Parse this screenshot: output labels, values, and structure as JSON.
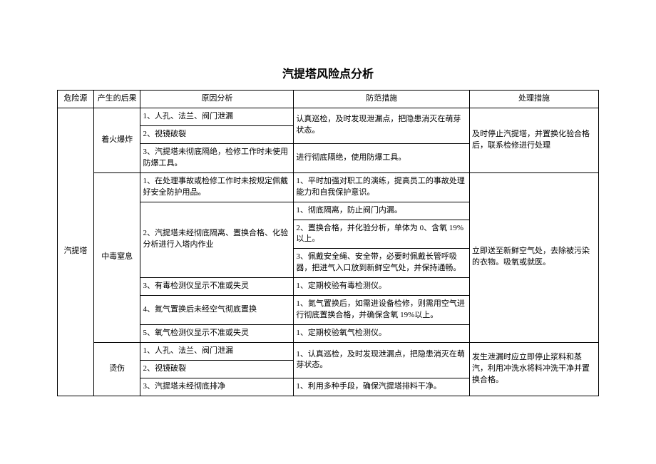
{
  "title": "汽提塔风险点分析",
  "headers": {
    "source": "危险源",
    "consequence": "产生的后果",
    "cause": "原因分析",
    "prevention": "防范措施",
    "treatment": "处理措施"
  },
  "source": "汽提塔",
  "groups": [
    {
      "consequence": "着火爆炸",
      "rows": [
        {
          "cause": "1、人孔、法兰、阀门泄漏",
          "prevention": "认真巡检，及时发现泄漏点，把隐患消灭在萌芽状态。"
        },
        {
          "cause": "2、视镜破裂"
        },
        {
          "cause": "3、汽提塔未彻底隔绝，检修工作时未使用防爆工具。",
          "prevention": "进行彻底隔绝，使用防爆工具。"
        }
      ],
      "treatment": "及时停止汽提塔，并置换化验合格后，联系检修进行处理"
    },
    {
      "consequence": "中毒窒息",
      "rows": [
        {
          "cause": "1、在处理事故或检修工作时未按规定佩戴好安全防护用品。",
          "prevention": "1、平时加强对职工的演练，提高员工的事故处理能力和自我保护意识。"
        },
        {
          "cause": "2、汽提塔未经彻底隔离、置换合格、化验分析进行入塔内作业",
          "preventions": [
            "1、彻底隔离，防止阀门内漏。",
            "2、置换合格，并化验分析，单体为 0、含氧 19%以上。",
            "3、佩戴安全绳、安全带，必要时佩戴长管呼吸器，把进气入口放到新鲜空气处，并保持通畅。"
          ]
        },
        {
          "cause": "3、有毒检测仪显示不准或失灵",
          "prevention": "1、定期校验有毒检测仪。"
        },
        {
          "cause": "4、氮气置换后未经空气彻底置换",
          "prevention": "1、氮气置换后，如需进设备检修，则需用空气进行彻底置换合格，并确保含氧 19%以上。"
        },
        {
          "cause": "5、氧气检测仪显示不准或失灵",
          "prevention": "1、定期校验氧气检测仪。"
        }
      ],
      "treatment": "立即送至新鲜空气处，去除被污染的衣物。吸氧或就医。"
    },
    {
      "consequence": "烫伤",
      "rows": [
        {
          "cause": "1、人孔、法兰、阀门泄漏",
          "prevention": "1、认真巡检，及时发现泄漏点，把隐患消灭在萌芽状态。"
        },
        {
          "cause": "2、视镜破裂"
        },
        {
          "cause": "3、汽提塔未经彻底排净",
          "prevention": "1、利用多种手段，确保汽提塔排料干净。"
        }
      ],
      "treatment": "发生泄漏时应立即停止浆料和蒸汽，利用冲洗水将料冲洗干净并置换合格。"
    }
  ]
}
